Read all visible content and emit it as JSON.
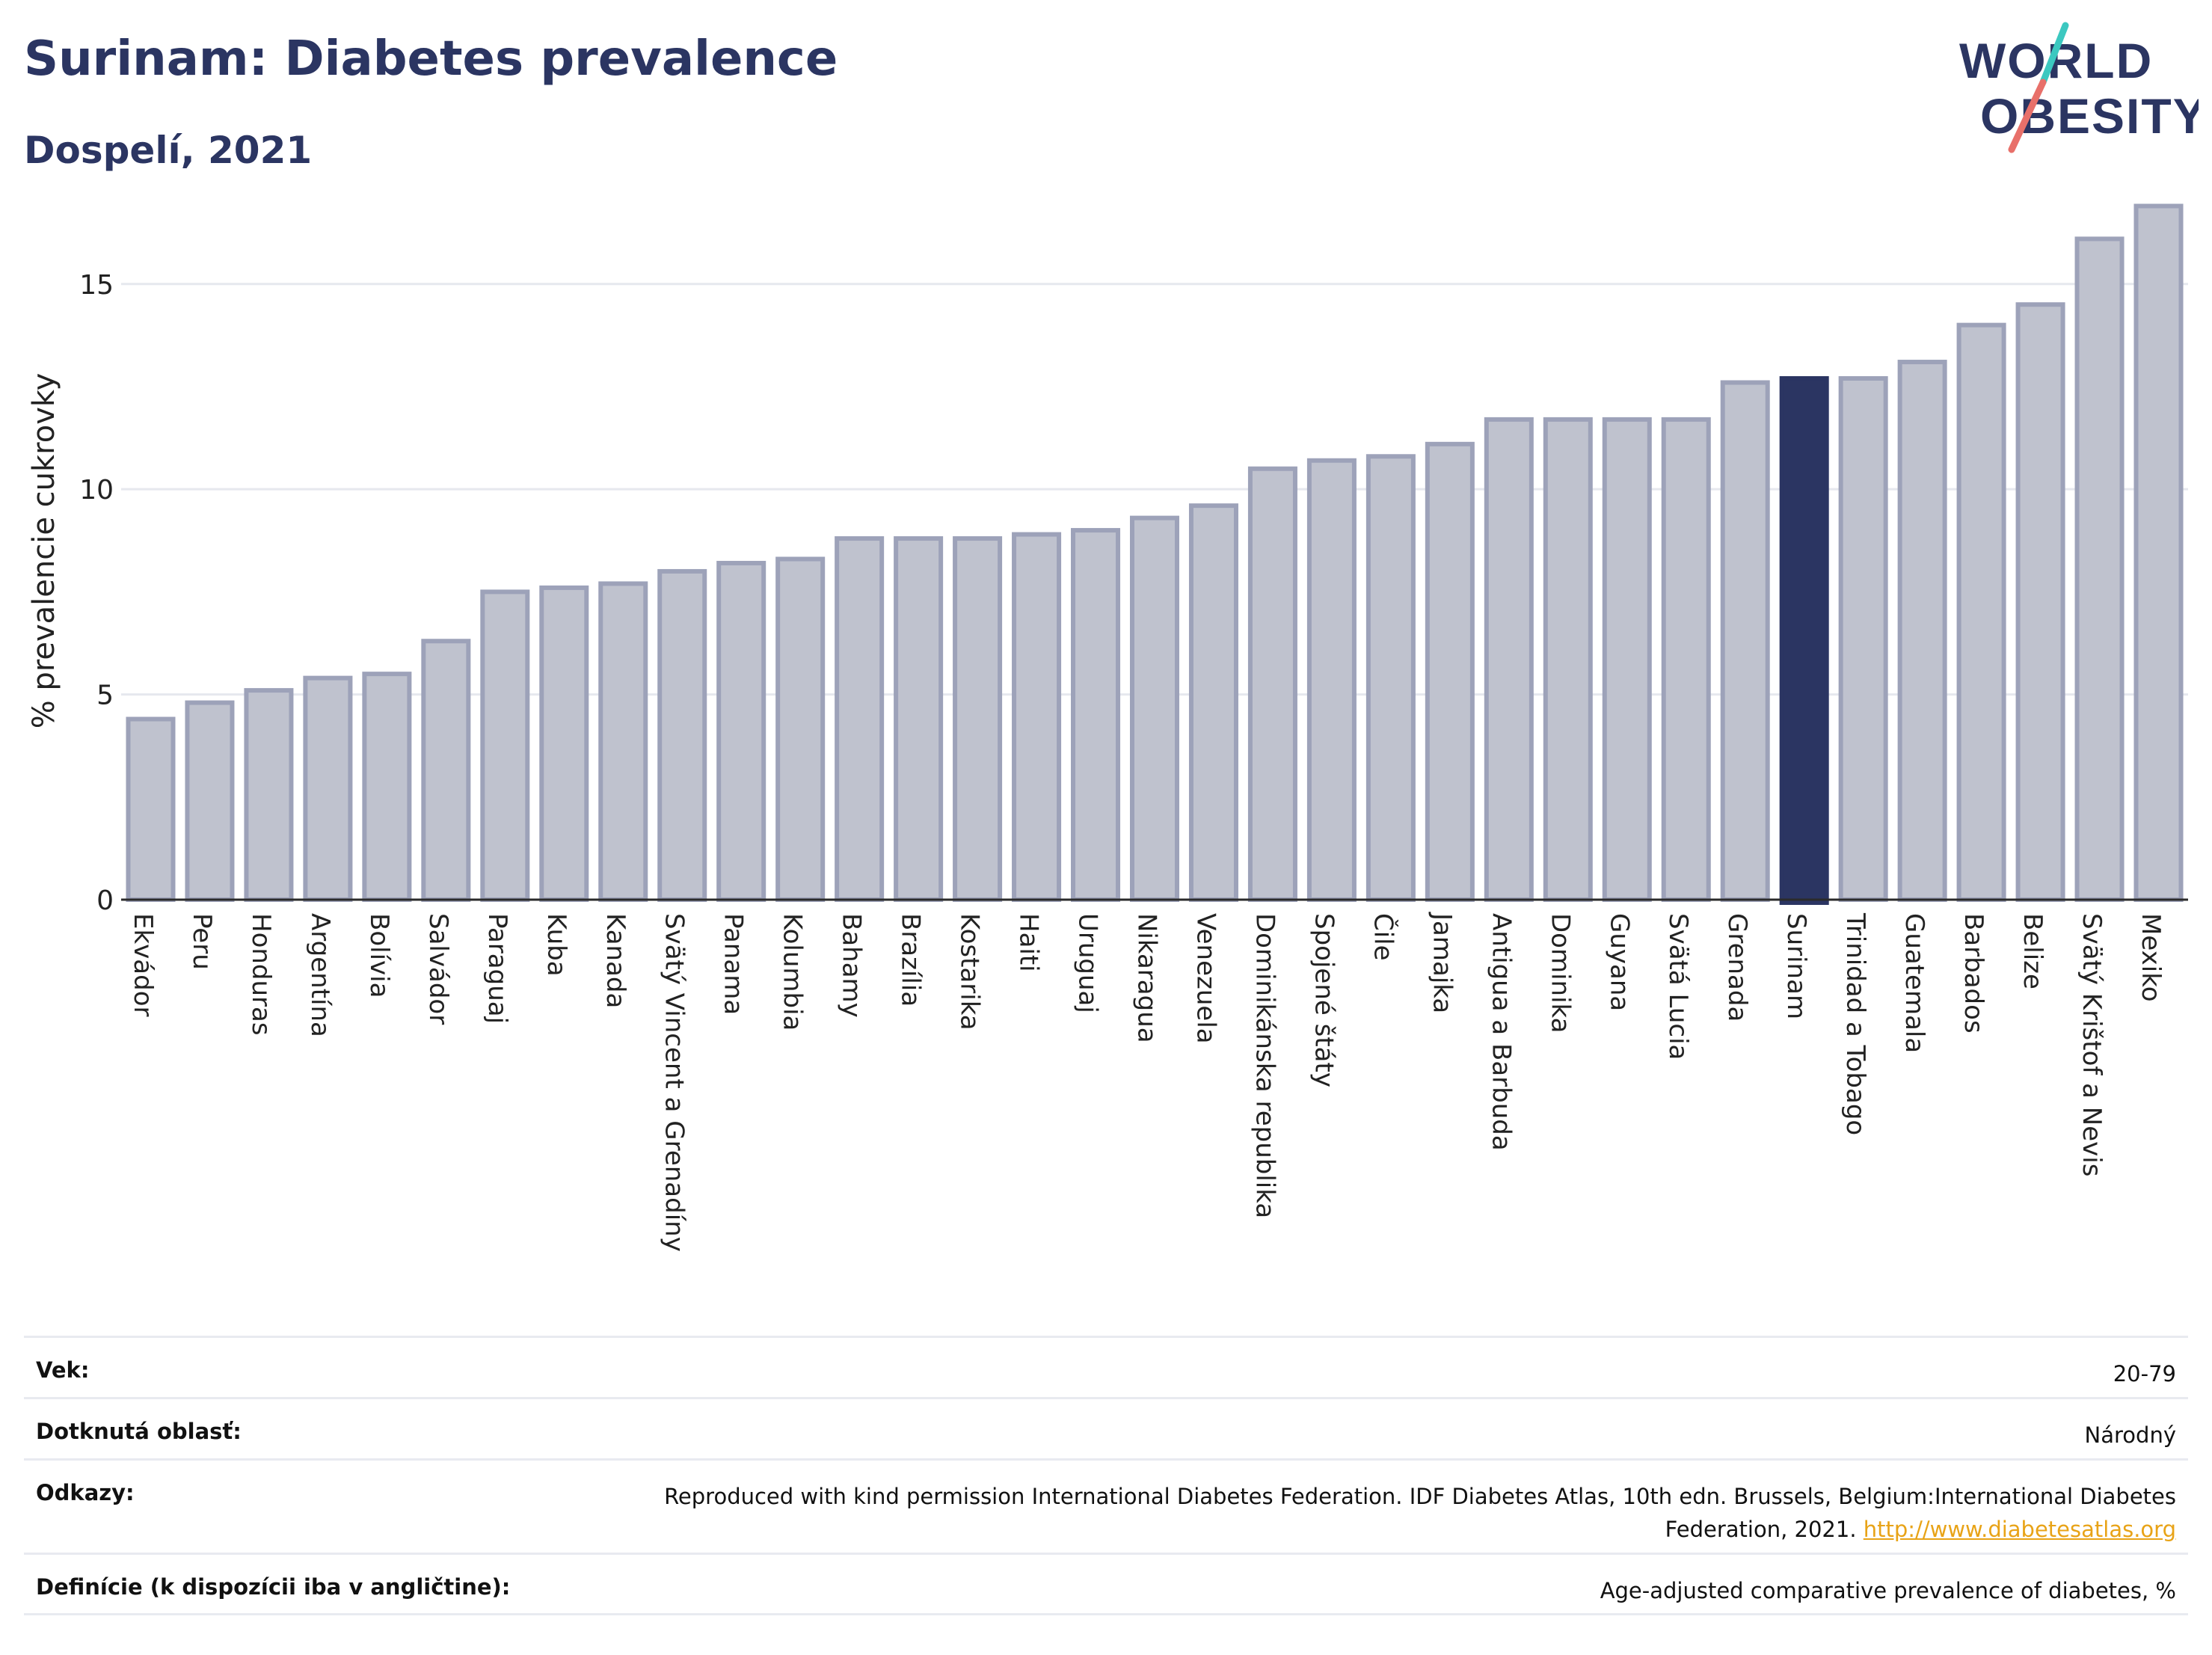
{
  "header": {
    "title": "Surinam: Diabetes prevalence",
    "subtitle": "Dospelí, 2021"
  },
  "logo": {
    "line1": "WORLD",
    "line2": "OBESITY"
  },
  "chart_data": {
    "type": "bar",
    "ylabel": "% prevalencie cukrovky",
    "ylim": [
      0,
      17
    ],
    "yticks": [
      0,
      5,
      10,
      15
    ],
    "grid": true,
    "highlight": "Surinam",
    "colors": {
      "bar": "#bfc2ce",
      "bar_edge": "#9da2b9",
      "highlight": "#2b3562"
    },
    "categories": [
      "Ekvádor",
      "Peru",
      "Honduras",
      "Argentína",
      "Bolívia",
      "Salvádor",
      "Paraguaj",
      "Kuba",
      "Kanada",
      "Svätý Vincent a Grenadíny",
      "Panama",
      "Kolumbia",
      "Bahamy",
      "Brazília",
      "Kostarika",
      "Haiti",
      "Uruguaj",
      "Nikaragua",
      "Venezuela",
      "Dominikánska republika",
      "Spojené štáty",
      "Čile",
      "Jamajka",
      "Antigua a Barbuda",
      "Dominika",
      "Guyana",
      "Svätá Lucia",
      "Grenada",
      "Surinam",
      "Trinidad a Tobago",
      "Guatemala",
      "Barbados",
      "Belize",
      "Svätý Krištof a Nevis",
      "Mexiko"
    ],
    "values": [
      4.4,
      4.8,
      5.1,
      5.4,
      5.5,
      6.3,
      7.5,
      7.6,
      7.7,
      8.0,
      8.2,
      8.3,
      8.8,
      8.8,
      8.8,
      8.9,
      9.0,
      9.3,
      9.6,
      10.5,
      10.7,
      10.8,
      11.1,
      11.7,
      11.7,
      11.7,
      11.7,
      12.6,
      12.7,
      12.7,
      13.1,
      14.0,
      14.5,
      16.1,
      16.9
    ]
  },
  "info": {
    "age_label": "Vek:",
    "age_value": "20-79",
    "area_label": "Dotknutá oblasť:",
    "area_value": "Národný",
    "refs_label": "Odkazy:",
    "refs_value": "Reproduced with kind permission International Diabetes Federation.  IDF Diabetes Atlas, 10th edn. Brussels, Belgium:International Diabetes Federation, 2021.",
    "refs_link": "http://www.diabetesatlas.org",
    "def_label": "Definície (k dispozícii iba v angličtine):",
    "def_value": "Age-adjusted comparative prevalence of diabetes, %"
  }
}
